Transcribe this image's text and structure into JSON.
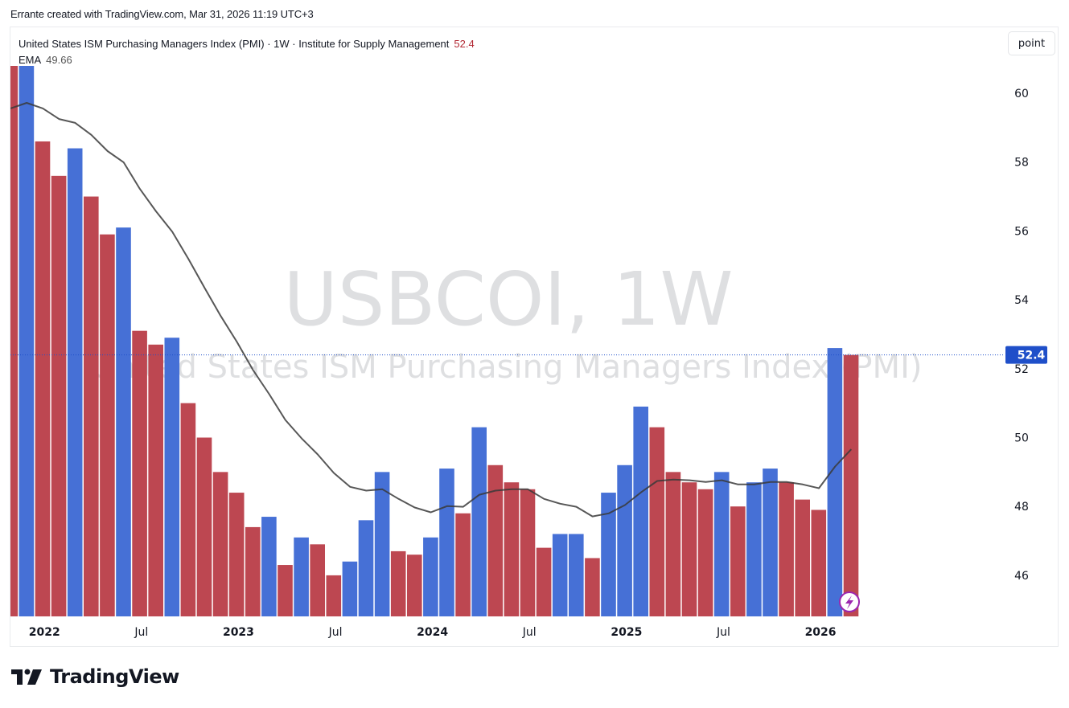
{
  "attribution": "Errante created with TradingView.com, Mar 31, 2026 11:19 UTC+3",
  "legend": {
    "title": "United States ISM Purchasing Managers Index (PMI) · 1W · Institute for Supply Management",
    "last_value": "52.4",
    "ema_label": "EMA",
    "ema_value": "49.66"
  },
  "scale_mode_button": "point",
  "watermark": {
    "symbol": "USBCOI, 1W",
    "description": "United States ISM Purchasing Managers Index (PMI)"
  },
  "price_label": "52.4",
  "footer_logo": "TradingView",
  "colors": {
    "up": "#4670d6",
    "down": "#bd4751",
    "ema": "#3a3a3a",
    "price_label_bg": "#1f4fc9",
    "watermark": "#dedfe1"
  },
  "chart_data": {
    "type": "bar",
    "title": "United States ISM Purchasing Managers Index (PMI) · 1W · Institute for Supply Management",
    "xlabel": "",
    "ylabel": "",
    "ylim": [
      44.8,
      61.2
    ],
    "y_ticks": [
      46,
      48,
      50,
      52,
      54,
      56,
      58,
      60
    ],
    "x_ticks": [
      {
        "label": "2022",
        "bar_index": 2.5,
        "bold": true
      },
      {
        "label": "Jul",
        "bar_index": 8.5,
        "bold": false
      },
      {
        "label": "2023",
        "bar_index": 14.5,
        "bold": true
      },
      {
        "label": "Jul",
        "bar_index": 20.5,
        "bold": false
      },
      {
        "label": "2024",
        "bar_index": 26.5,
        "bold": true
      },
      {
        "label": "Jul",
        "bar_index": 32.5,
        "bold": false
      },
      {
        "label": "2025",
        "bar_index": 38.5,
        "bold": true
      },
      {
        "label": "Jul",
        "bar_index": 44.5,
        "bold": false
      },
      {
        "label": "2026",
        "bar_index": 50.5,
        "bold": true
      }
    ],
    "grid": false,
    "legend_position": "top-left",
    "last_price_line": 52.4,
    "series": [
      {
        "name": "USBCOI (PMI)",
        "type": "bar",
        "direction": [
          "down",
          "up",
          "down",
          "down",
          "up",
          "down",
          "down",
          "up",
          "down",
          "down",
          "up",
          "down",
          "down",
          "down",
          "down",
          "down",
          "up",
          "down",
          "up",
          "down",
          "down",
          "up",
          "up",
          "up",
          "down",
          "down",
          "up",
          "up",
          "down",
          "up",
          "down",
          "down",
          "down",
          "down",
          "up",
          "up",
          "down",
          "up",
          "up",
          "up",
          "down",
          "down",
          "down",
          "down",
          "up",
          "down",
          "up",
          "up",
          "down",
          "down",
          "down",
          "up",
          "down"
        ],
        "values": [
          60.8,
          61.0,
          58.6,
          57.6,
          58.4,
          57.0,
          55.9,
          56.1,
          53.1,
          52.7,
          52.9,
          51.0,
          50.0,
          49.0,
          48.4,
          47.4,
          47.7,
          46.3,
          47.1,
          46.9,
          46.0,
          46.4,
          47.6,
          49.0,
          46.7,
          46.6,
          47.1,
          49.1,
          47.8,
          50.3,
          49.2,
          48.7,
          48.5,
          46.8,
          47.2,
          47.2,
          46.5,
          48.4,
          49.2,
          50.9,
          50.3,
          49.0,
          48.7,
          48.5,
          49.0,
          48.0,
          48.7,
          49.1,
          48.7,
          48.2,
          47.9,
          52.6,
          52.4
        ]
      },
      {
        "name": "EMA",
        "type": "line",
        "values": [
          59.56,
          59.72,
          59.56,
          59.25,
          59.14,
          58.79,
          58.32,
          57.99,
          57.22,
          56.57,
          55.98,
          55.19,
          54.35,
          53.53,
          52.78,
          51.96,
          51.26,
          50.51,
          49.98,
          49.51,
          48.97,
          48.57,
          48.46,
          48.5,
          48.22,
          47.97,
          47.83,
          48.01,
          47.99,
          48.34,
          48.46,
          48.5,
          48.5,
          48.22,
          48.08,
          47.99,
          47.71,
          47.8,
          48.04,
          48.41,
          48.74,
          48.78,
          48.76,
          48.71,
          48.76,
          48.64,
          48.64,
          48.71,
          48.71,
          48.64,
          48.53,
          49.16,
          49.66
        ]
      }
    ]
  }
}
